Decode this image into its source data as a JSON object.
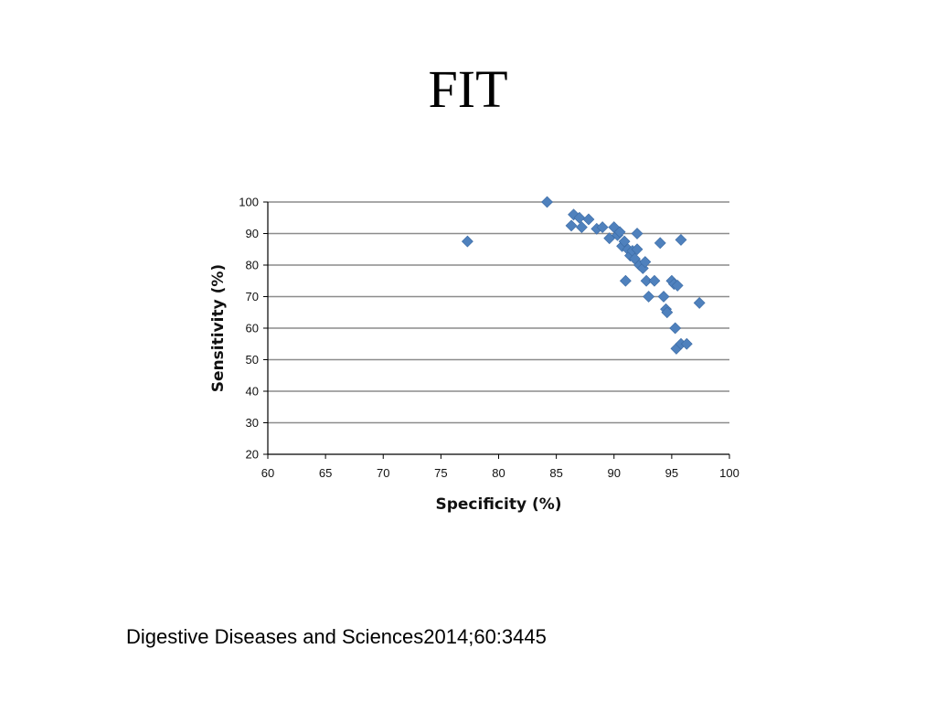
{
  "slide": {
    "title": "FIT",
    "citation": "Digestive Diseases and Sciences2014;60:3445"
  },
  "chart_data": {
    "type": "scatter",
    "xlabel": "Specificity (%)",
    "ylabel": "Sensitivity (%)",
    "xlim": [
      60,
      100
    ],
    "ylim": [
      20,
      100
    ],
    "xticks": [
      60,
      65,
      70,
      75,
      80,
      85,
      90,
      95,
      100
    ],
    "yticks": [
      20,
      30,
      40,
      50,
      60,
      70,
      80,
      90,
      100
    ],
    "grid": "horizontal",
    "marker": "diamond",
    "color": "#4F81BD",
    "points": [
      [
        77.3,
        87.5
      ],
      [
        84.2,
        100
      ],
      [
        86.5,
        96
      ],
      [
        86.3,
        92.5
      ],
      [
        87,
        95
      ],
      [
        87.2,
        92
      ],
      [
        87.8,
        94.5
      ],
      [
        88.5,
        91.5
      ],
      [
        89,
        92
      ],
      [
        89.6,
        88.5
      ],
      [
        90,
        92
      ],
      [
        90.3,
        89.5
      ],
      [
        90.5,
        90.5
      ],
      [
        90.7,
        86
      ],
      [
        90.9,
        87.5
      ],
      [
        91,
        75
      ],
      [
        91.2,
        85
      ],
      [
        91.4,
        83
      ],
      [
        91.6,
        84.5
      ],
      [
        91.8,
        82
      ],
      [
        92,
        85
      ],
      [
        92.2,
        80
      ],
      [
        92,
        90
      ],
      [
        92.5,
        79
      ],
      [
        92.7,
        81
      ],
      [
        92.8,
        75
      ],
      [
        93,
        70
      ],
      [
        93.5,
        75
      ],
      [
        94,
        87
      ],
      [
        94.3,
        70
      ],
      [
        94.5,
        66
      ],
      [
        94.6,
        65
      ],
      [
        95,
        75
      ],
      [
        95.3,
        60
      ],
      [
        95.2,
        74
      ],
      [
        95.5,
        73.5
      ],
      [
        95.4,
        53.5
      ],
      [
        95.8,
        88
      ],
      [
        95.8,
        55
      ],
      [
        96.3,
        55
      ],
      [
        97.4,
        68
      ]
    ]
  }
}
